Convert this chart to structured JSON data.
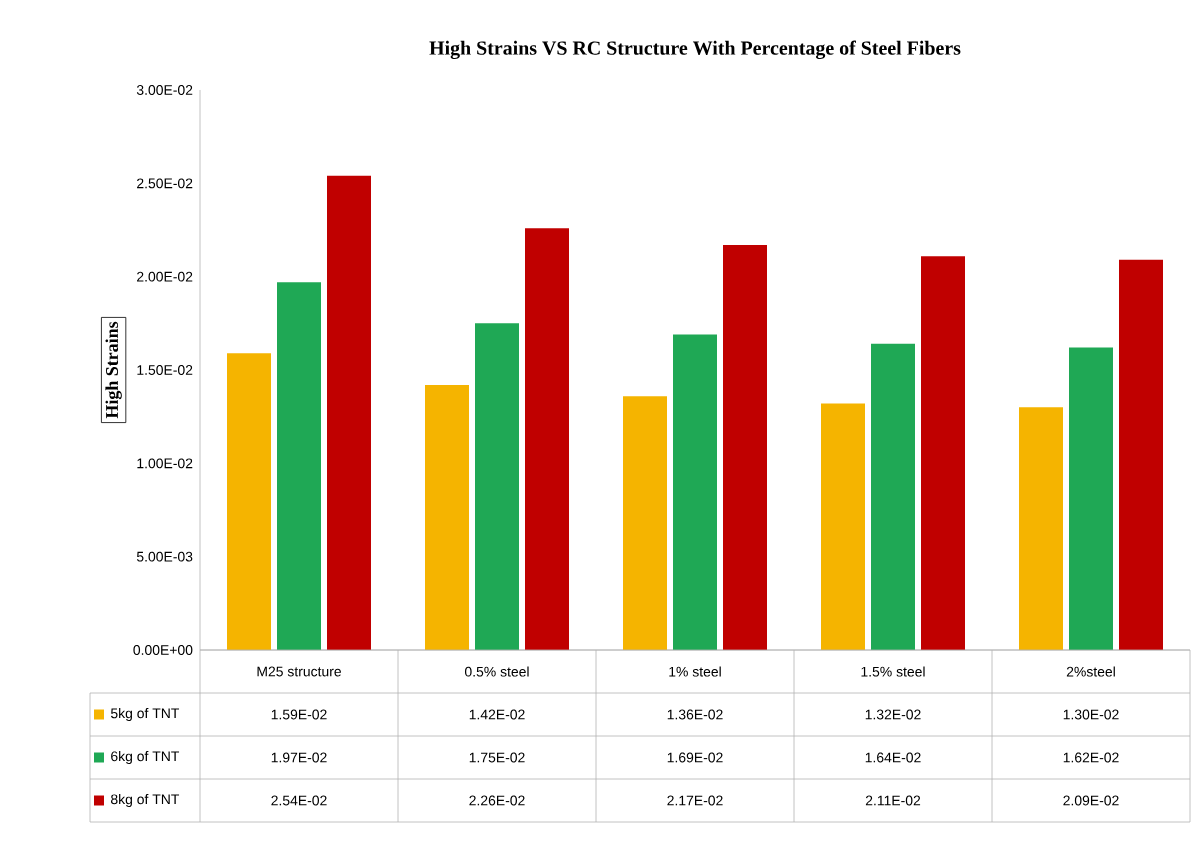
{
  "chart_data": {
    "type": "bar",
    "title": "High Strains VS RC Structure With Percentage of Steel Fibers",
    "ylabel": "High Strains",
    "categories": [
      "M25 structure",
      "0.5% steel",
      "1% steel",
      "1.5% steel",
      "2%steel"
    ],
    "series": [
      {
        "name": "5kg of TNT",
        "color": "#f5b400",
        "values": [
          0.0159,
          0.0142,
          0.0136,
          0.0132,
          0.013
        ],
        "value_labels": [
          "1.59E-02",
          "1.42E-02",
          "1.36E-02",
          "1.32E-02",
          "1.30E-02"
        ]
      },
      {
        "name": "6kg of TNT",
        "color": "#1fa855",
        "values": [
          0.0197,
          0.0175,
          0.0169,
          0.0164,
          0.0162
        ],
        "value_labels": [
          "1.97E-02",
          "1.75E-02",
          "1.69E-02",
          "1.64E-02",
          "1.62E-02"
        ]
      },
      {
        "name": "8kg of TNT",
        "color": "#c00000",
        "values": [
          0.0254,
          0.0226,
          0.0217,
          0.0211,
          0.0209
        ],
        "value_labels": [
          "2.54E-02",
          "2.26E-02",
          "2.17E-02",
          "2.11E-02",
          "2.09E-02"
        ]
      }
    ],
    "ylim": [
      0,
      0.03
    ],
    "yticks": [
      {
        "value": 0,
        "label": "0.00E+00"
      },
      {
        "value": 0.005,
        "label": "5.00E-03"
      },
      {
        "value": 0.01,
        "label": "1.00E-02"
      },
      {
        "value": 0.015,
        "label": "1.50E-02"
      },
      {
        "value": 0.02,
        "label": "2.00E-02"
      },
      {
        "value": 0.025,
        "label": "2.50E-02"
      },
      {
        "value": 0.03,
        "label": "3.00E-02"
      }
    ],
    "legend": "bottom",
    "grid": false
  }
}
